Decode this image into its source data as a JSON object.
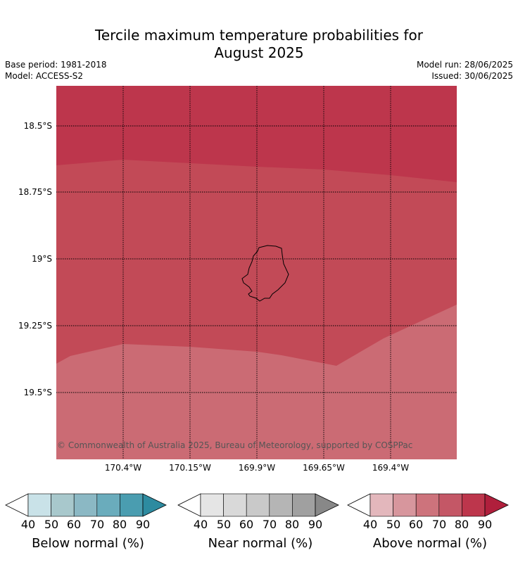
{
  "title_line1": "Tercile maximum temperature probabilities for",
  "title_line2": "August 2025",
  "base_period": "Base period: 1981-2018",
  "model": "Model: ACCESS-S2",
  "model_run": "Model run: 28/06/2025",
  "issued": "Issued: 30/06/2025",
  "copyright": "© Commonwealth of Australia 2025, Bureau of Meteorology, supported by COSPPac",
  "lat_labels": [
    "18.5°S",
    "18.75°S",
    "19°S",
    "19.25°S",
    "19.5°S"
  ],
  "lon_labels": [
    "170.4°W",
    "170.15°W",
    "169.9°W",
    "169.65°W",
    "169.4°W"
  ],
  "colorbars": [
    {
      "label": "Below normal (%)",
      "ticks": [
        "40",
        "50",
        "60",
        "70",
        "80",
        "90"
      ],
      "colors": [
        "#ffffff",
        "#c9e2e8",
        "#a8c8cc",
        "#8bb8c4",
        "#6aacbc",
        "#4a9db0",
        "#2d8ba0"
      ]
    },
    {
      "label": "Near normal (%)",
      "ticks": [
        "40",
        "50",
        "60",
        "70",
        "80",
        "90"
      ],
      "colors": [
        "#ffffff",
        "#e5e5e5",
        "#d9d9d9",
        "#c9c9c9",
        "#b5b5b5",
        "#a0a0a0",
        "#888888"
      ]
    },
    {
      "label": "Above normal (%)",
      "ticks": [
        "40",
        "50",
        "60",
        "70",
        "80",
        "90"
      ],
      "colors": [
        "#ffffff",
        "#e3b7bc",
        "#d7969d",
        "#cd737c",
        "#c45766",
        "#bd364c",
        "#b01f3c"
      ]
    }
  ],
  "region_colors": {
    "above_80_90": "#bd364c",
    "above_70_80": "#c24a57",
    "above_60_70": "#cb6b74"
  }
}
